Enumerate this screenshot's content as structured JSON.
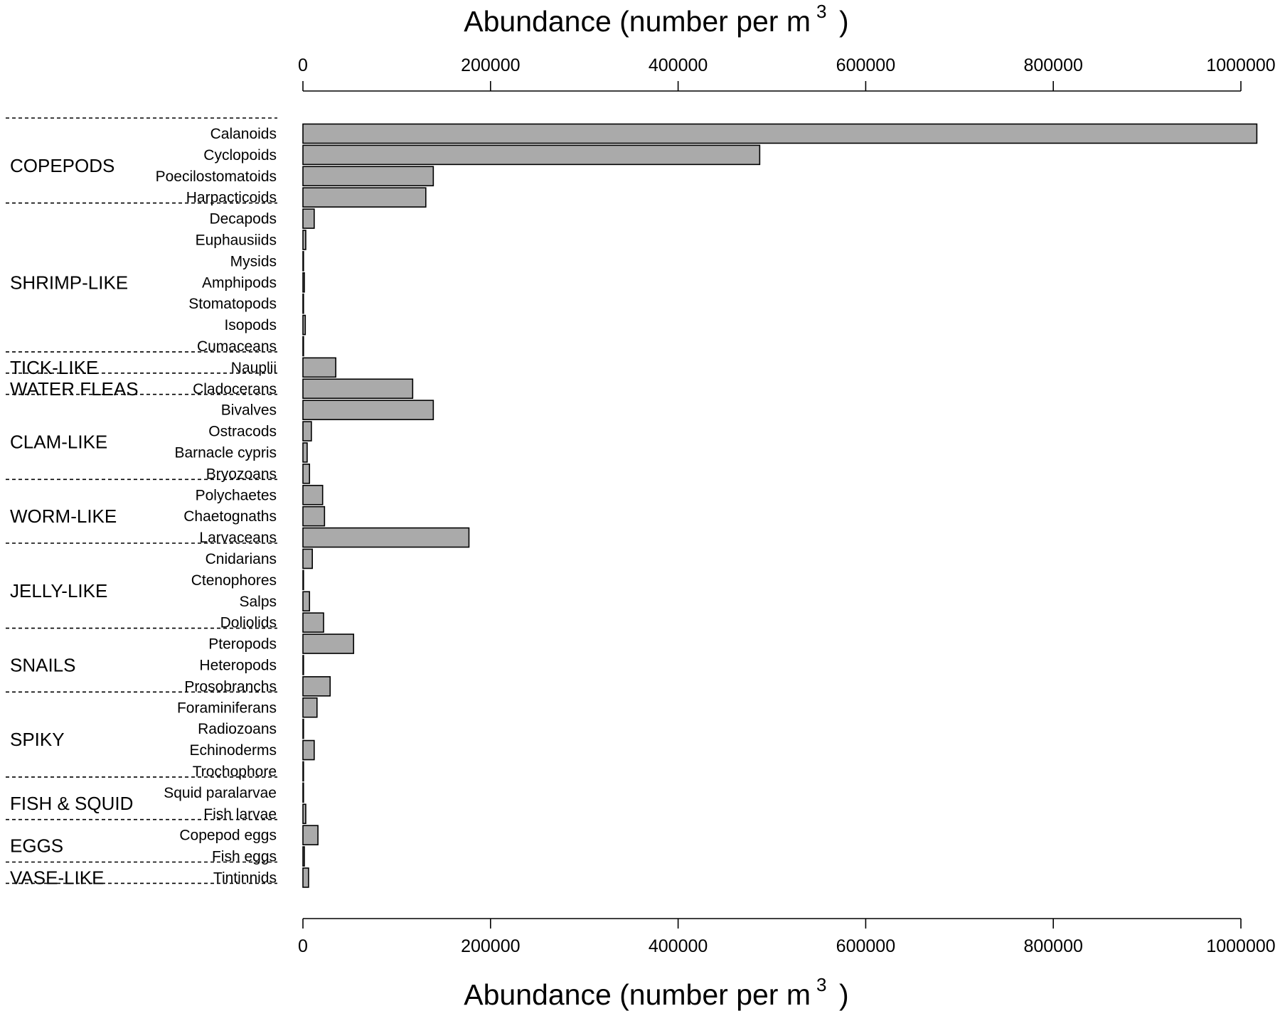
{
  "chart_data": {
    "type": "bar",
    "orientation": "horizontal",
    "xlabel_top": "Abundance (number per m",
    "xlabel_bottom": "Abundance (number per m",
    "xlabel_superscript": "3",
    "xlabel_close": ")",
    "xlim": [
      0,
      1000000
    ],
    "xticks": [
      "0",
      "200000",
      "400000",
      "600000",
      "800000",
      "1000000"
    ],
    "xtick_values": [
      0,
      200000,
      400000,
      600000,
      800000,
      1000000
    ],
    "categories": [
      "Calanoids",
      "Cyclopoids",
      "Poecilostomatoids",
      "Harpacticoids",
      "Decapods",
      "Euphausiids",
      "Mysids",
      "Amphipods",
      "Stomatopods",
      "Isopods",
      "Cumaceans",
      "Nauplii",
      "Cladocerans",
      "Bivalves",
      "Ostracods",
      "Barnacle cypris",
      "Bryozoans",
      "Polychaetes",
      "Chaetognaths",
      "Larvaceans",
      "Cnidarians",
      "Ctenophores",
      "Salps",
      "Doliolids",
      "Pteropods",
      "Heteropods",
      "Prosobranchs",
      "Foraminiferans",
      "Radiozoans",
      "Echinoderms",
      "Trochophore",
      "Squid paralarvae",
      "Fish larvae",
      "Copepod eggs",
      "Fish eggs",
      "Tintinnids"
    ],
    "values": [
      1017000,
      487000,
      139000,
      131000,
      12000,
      3000,
      300,
      1500,
      300,
      2500,
      300,
      35000,
      117000,
      139000,
      9000,
      4500,
      7000,
      21000,
      23000,
      177000,
      10000,
      500,
      7000,
      22000,
      54000,
      500,
      29000,
      15000,
      500,
      12000,
      500,
      500,
      3000,
      16000,
      1500,
      6000
    ],
    "groups": [
      {
        "name": "COPEPODS",
        "start": 0,
        "count": 4
      },
      {
        "name": "SHRIMP-LIKE",
        "start": 4,
        "count": 7
      },
      {
        "name": "TICK-LIKE",
        "start": 11,
        "count": 1
      },
      {
        "name": "WATER FLEAS",
        "start": 12,
        "count": 1
      },
      {
        "name": "CLAM-LIKE",
        "start": 13,
        "count": 4
      },
      {
        "name": "WORM-LIKE",
        "start": 17,
        "count": 3
      },
      {
        "name": "JELLY-LIKE",
        "start": 20,
        "count": 4
      },
      {
        "name": "SNAILS",
        "start": 24,
        "count": 3
      },
      {
        "name": "SPIKY",
        "start": 27,
        "count": 4
      },
      {
        "name": "FISH & SQUID",
        "start": 31,
        "count": 2
      },
      {
        "name": "EGGS",
        "start": 33,
        "count": 2
      },
      {
        "name": "VASE-LIKE",
        "start": 35,
        "count": 1
      }
    ],
    "grid": false,
    "colors": {
      "bar_fill": "#aaaaaa",
      "bar_stroke": "#000000"
    }
  }
}
